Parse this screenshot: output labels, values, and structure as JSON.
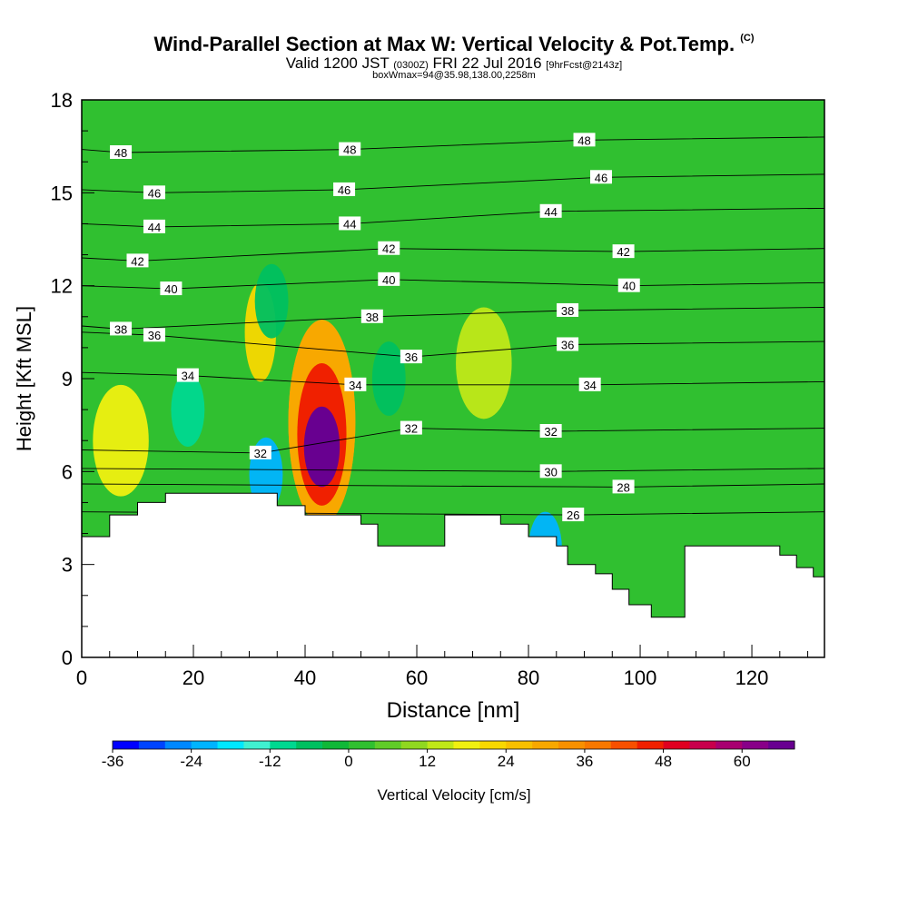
{
  "header": {
    "title": "Wind-Parallel Section at Max W: Vertical Velocity & Pot.Temp.",
    "title_tag": "(C)",
    "valid_prefix": "Valid 1200 JST",
    "valid_utc": "(0300Z)",
    "valid_date": "FRI 22 Jul 2016",
    "forecast": "[9hrFcst@2143z]",
    "boxwmax": "boxWmax=94@35.98,138.00,2258m"
  },
  "chart_data": {
    "type": "heatmap",
    "xlabel": "Distance [nm]",
    "ylabel": "Height [Kft MSL]",
    "xlim": [
      0,
      133
    ],
    "ylim": [
      0,
      18
    ],
    "x_ticks": [
      0,
      20,
      40,
      60,
      80,
      100,
      120
    ],
    "y_ticks": [
      0,
      3,
      6,
      9,
      12,
      15,
      18
    ],
    "background_value": 2,
    "colorbar": {
      "label": "Vertical Velocity [cm/s]",
      "ticks": [
        -36,
        -24,
        -12,
        0,
        12,
        24,
        36,
        48,
        60
      ],
      "min": -36,
      "max": 68,
      "step": 4,
      "colors": [
        "#0000ff",
        "#0044ff",
        "#0088ff",
        "#00b4ff",
        "#00e8ff",
        "#40f0d0",
        "#00d890",
        "#00c060",
        "#10b838",
        "#30c030",
        "#60cc28",
        "#90d820",
        "#c0e818",
        "#f0f010",
        "#f8d800",
        "#f8c000",
        "#f8a800",
        "#f89000",
        "#f87800",
        "#f85000",
        "#f02000",
        "#e00020",
        "#c8004c",
        "#a80070",
        "#880088",
        "#680090"
      ]
    },
    "terrain": [
      [
        0,
        3.9
      ],
      [
        5,
        3.9
      ],
      [
        5,
        4.6
      ],
      [
        10,
        4.6
      ],
      [
        10,
        5.0
      ],
      [
        15,
        5.0
      ],
      [
        15,
        5.3
      ],
      [
        35,
        5.3
      ],
      [
        35,
        4.9
      ],
      [
        40,
        4.9
      ],
      [
        40,
        4.6
      ],
      [
        50,
        4.6
      ],
      [
        50,
        4.3
      ],
      [
        53,
        4.3
      ],
      [
        53,
        3.6
      ],
      [
        65,
        3.6
      ],
      [
        65,
        4.6
      ],
      [
        75,
        4.6
      ],
      [
        75,
        4.3
      ],
      [
        80,
        4.3
      ],
      [
        80,
        3.9
      ],
      [
        85,
        3.9
      ],
      [
        85,
        3.6
      ],
      [
        87,
        3.6
      ],
      [
        87,
        3.0
      ],
      [
        92,
        3.0
      ],
      [
        92,
        2.7
      ],
      [
        95,
        2.7
      ],
      [
        95,
        2.2
      ],
      [
        98,
        2.2
      ],
      [
        98,
        1.7
      ],
      [
        102,
        1.7
      ],
      [
        102,
        1.3
      ],
      [
        105,
        1.3
      ],
      [
        105,
        1.3
      ],
      [
        108,
        1.3
      ],
      [
        108,
        3.6
      ],
      [
        125,
        3.6
      ],
      [
        125,
        3.3
      ],
      [
        128,
        3.3
      ],
      [
        128,
        2.9
      ],
      [
        131,
        2.9
      ],
      [
        131,
        2.6
      ],
      [
        133,
        2.6
      ]
    ],
    "features": [
      {
        "name": "updraft core",
        "x": 43,
        "y": 6.8,
        "value": 66
      },
      {
        "name": "updraft",
        "x": 43,
        "y": 7.2,
        "value": 46
      },
      {
        "name": "updraft",
        "x": 43,
        "y": 7.6,
        "value": 30
      },
      {
        "name": "upper updraft",
        "x": 32,
        "y": 10.5,
        "value": 20
      },
      {
        "name": "downdraft",
        "x": 33,
        "y": 5.9,
        "value": -24
      },
      {
        "name": "downdraft",
        "x": 34,
        "y": 11.5,
        "value": -8
      },
      {
        "name": "downdraft",
        "x": 19,
        "y": 8.0,
        "value": -12
      },
      {
        "name": "downdraft",
        "x": 83,
        "y": 3.5,
        "value": -24
      },
      {
        "name": "downdraft",
        "x": 55,
        "y": 9.0,
        "value": -8
      },
      {
        "name": "weak updraft",
        "x": 7,
        "y": 7.0,
        "value": 16
      },
      {
        "name": "weak updraft",
        "x": 72,
        "y": 9.5,
        "value": 12
      }
    ],
    "theta_levels": [
      26,
      28,
      30,
      32,
      34,
      36,
      38,
      40,
      42,
      44,
      46,
      48
    ],
    "theta_labels": [
      {
        "text": "48",
        "x": 7,
        "y": 16.3
      },
      {
        "text": "48",
        "x": 48,
        "y": 16.4
      },
      {
        "text": "48",
        "x": 90,
        "y": 16.7
      },
      {
        "text": "46",
        "x": 13,
        "y": 15.0
      },
      {
        "text": "46",
        "x": 47,
        "y": 15.1
      },
      {
        "text": "46",
        "x": 93,
        "y": 15.5
      },
      {
        "text": "44",
        "x": 13,
        "y": 13.9
      },
      {
        "text": "44",
        "x": 48,
        "y": 14.0
      },
      {
        "text": "44",
        "x": 84,
        "y": 14.4
      },
      {
        "text": "42",
        "x": 10,
        "y": 12.8
      },
      {
        "text": "42",
        "x": 55,
        "y": 13.2
      },
      {
        "text": "42",
        "x": 97,
        "y": 13.1
      },
      {
        "text": "40",
        "x": 16,
        "y": 11.9
      },
      {
        "text": "40",
        "x": 55,
        "y": 12.2
      },
      {
        "text": "40",
        "x": 98,
        "y": 12.0
      },
      {
        "text": "38",
        "x": 7,
        "y": 10.6
      },
      {
        "text": "38",
        "x": 52,
        "y": 11.0
      },
      {
        "text": "38",
        "x": 87,
        "y": 11.2
      },
      {
        "text": "36",
        "x": 13,
        "y": 10.4
      },
      {
        "text": "36",
        "x": 59,
        "y": 9.7
      },
      {
        "text": "36",
        "x": 87,
        "y": 10.1
      },
      {
        "text": "34",
        "x": 19,
        "y": 9.1
      },
      {
        "text": "34",
        "x": 49,
        "y": 8.8
      },
      {
        "text": "34",
        "x": 91,
        "y": 8.8
      },
      {
        "text": "32",
        "x": 32,
        "y": 6.6
      },
      {
        "text": "32",
        "x": 59,
        "y": 7.4
      },
      {
        "text": "32",
        "x": 84,
        "y": 7.3
      },
      {
        "text": "30",
        "x": 84,
        "y": 6.0
      },
      {
        "text": "28",
        "x": 97,
        "y": 5.5
      },
      {
        "text": "26",
        "x": 88,
        "y": 4.6
      }
    ]
  }
}
